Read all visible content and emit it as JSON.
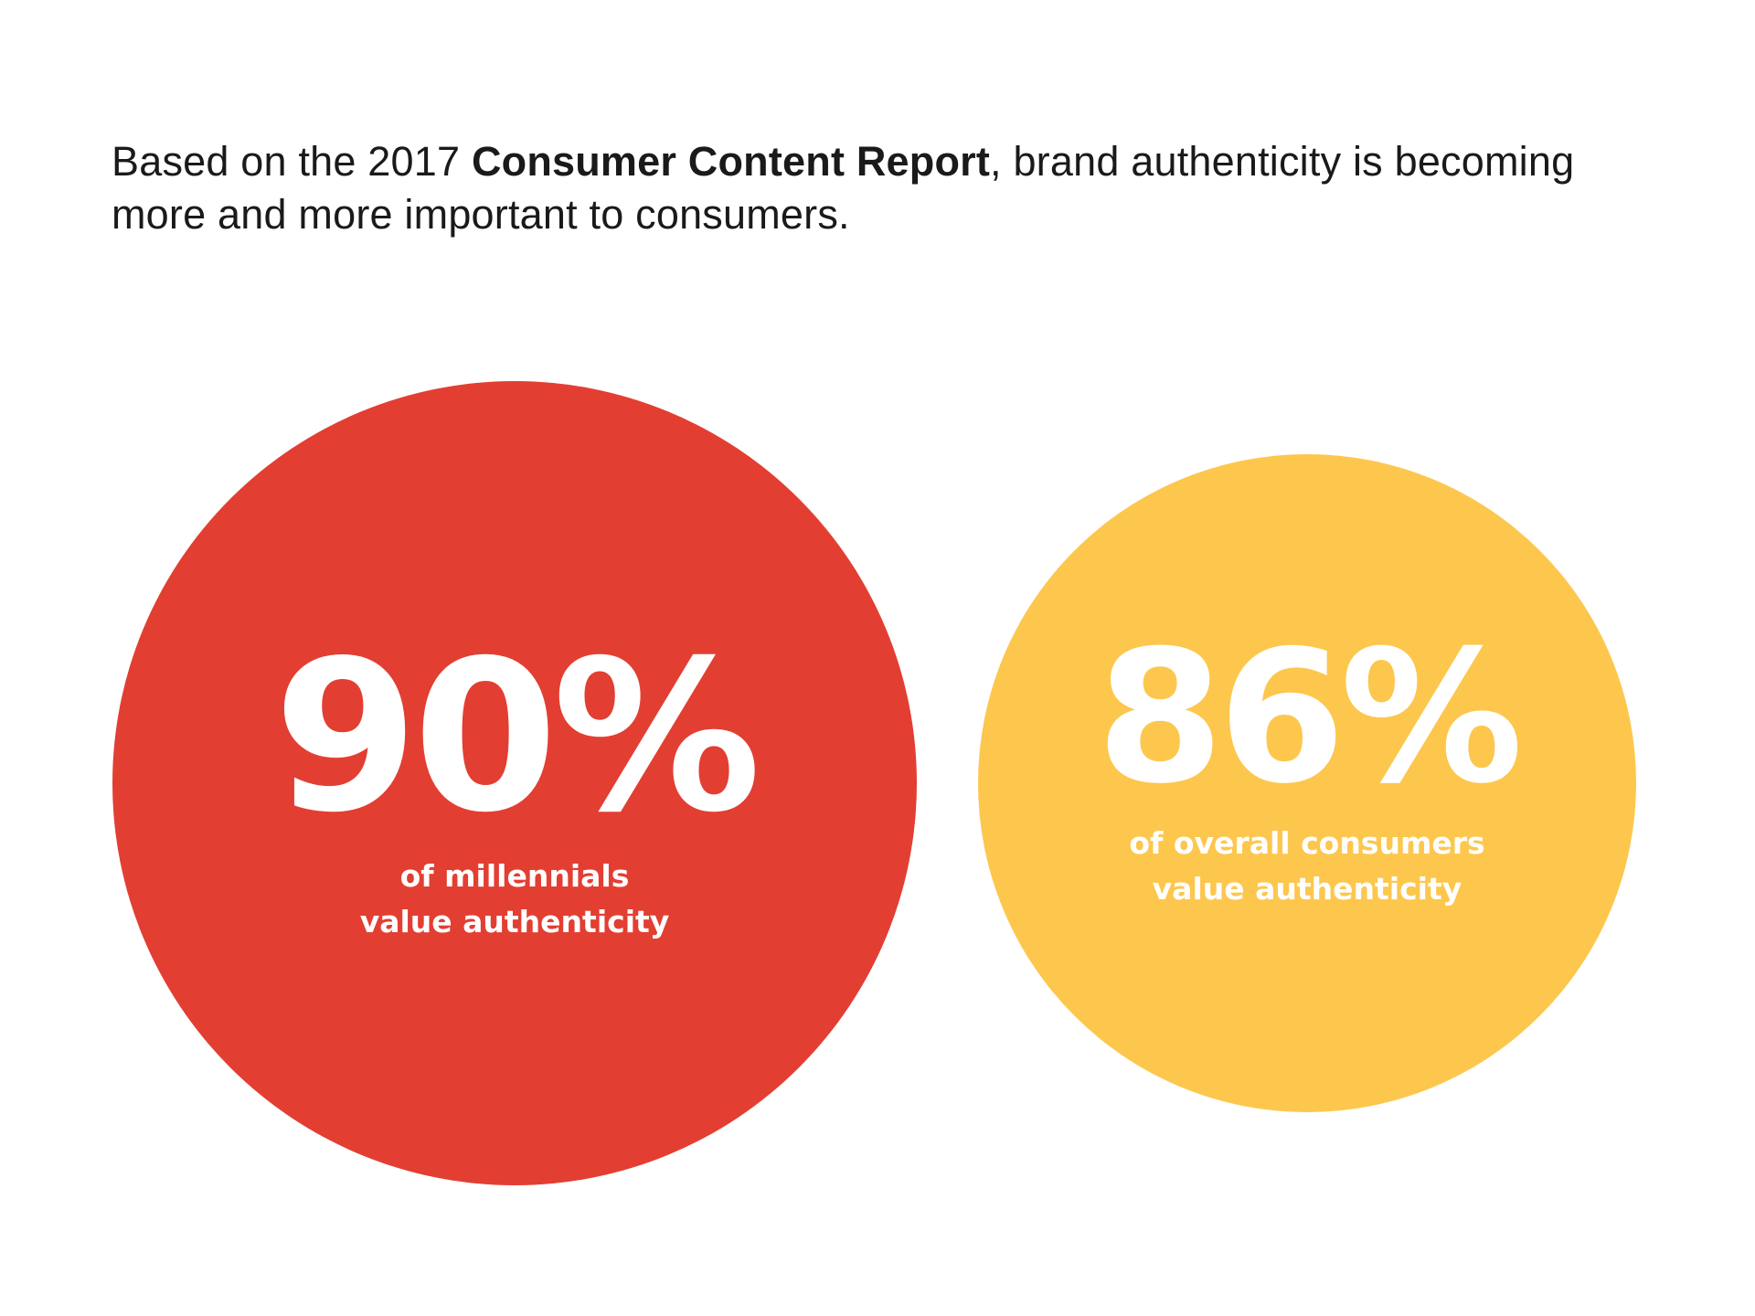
{
  "intro": {
    "prefix": "Based on the 2017 ",
    "emphasis": "Consumer Content Report",
    "suffix": ", brand authenticity is becoming more and more important to consumers."
  },
  "chart_data": {
    "type": "bubble",
    "title": "",
    "series": [
      {
        "value_label": "90%",
        "value": 90,
        "caption": "of millennials\nvalue authenticity",
        "color": "#E33E32"
      },
      {
        "value_label": "86%",
        "value": 86,
        "caption": "of overall consumers\nvalue authenticity",
        "color": "#FDC74E"
      }
    ]
  }
}
